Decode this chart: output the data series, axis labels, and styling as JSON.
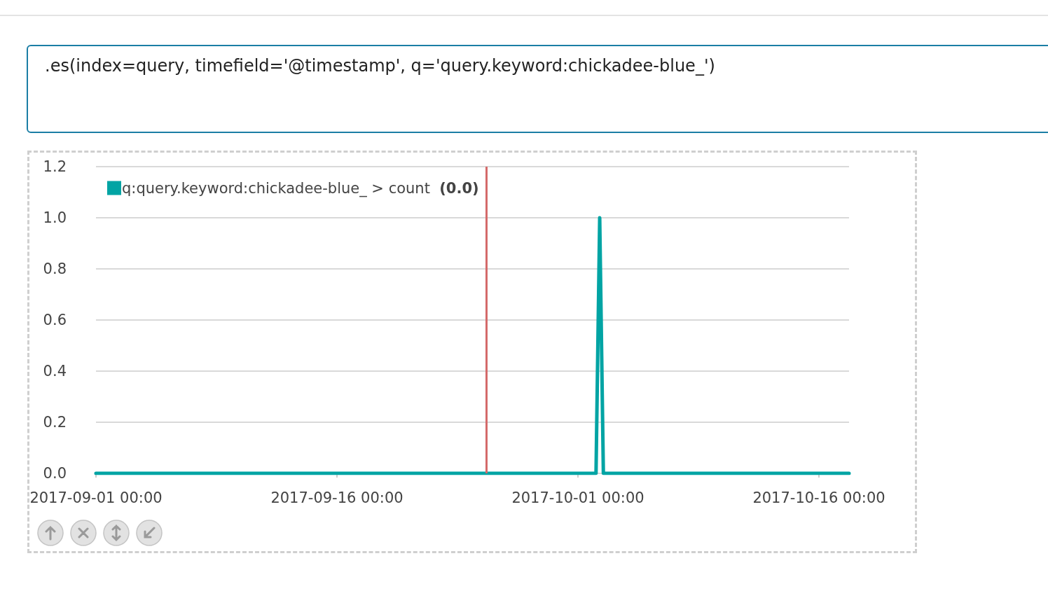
{
  "chart_data": {
    "type": "line",
    "title": ".es(index=query, timefield='@timestamp', q='query.keyword:chickadee-blue_')",
    "x": [
      "2017-09-01T00:00",
      "2017-10-02T03:00",
      "2017-10-02T08:30",
      "2017-10-02T14:00",
      "2017-10-17T21:00"
    ],
    "series": [
      {
        "name": "q:query.keyword:chickadee-blue_ > count",
        "color": "#01a4a4",
        "values": [
          0,
          0,
          1,
          0,
          0
        ]
      }
    ],
    "annotations": [
      "(0.0)"
    ],
    "xlim": [
      "2017-09-01T00:00",
      "2017-10-17T21:00"
    ],
    "xticks": [
      {
        "value": "2017-09-01",
        "label": "2017-09-01 00:00"
      },
      {
        "value": "2017-09-16",
        "label": "2017-09-16 00:00"
      },
      {
        "value": "2017-10-01",
        "label": "2017-10-01 00:00"
      },
      {
        "value": "2017-10-16",
        "label": "2017-10-16 00:00"
      }
    ],
    "ylim": [
      0,
      1.2
    ],
    "yticks": [
      {
        "value": 0,
        "label": "0.0"
      },
      0.2,
      0.4,
      0.6,
      0.8,
      {
        "value": 1,
        "label": "1.0"
      },
      1.2
    ],
    "ref_lines": [
      {
        "axis": "x",
        "value": "2017-09-25T07:00",
        "color": "#d46a6a"
      }
    ],
    "grid": "y",
    "legend": "top left",
    "marker": "none",
    "line_style": "solid"
  }
}
